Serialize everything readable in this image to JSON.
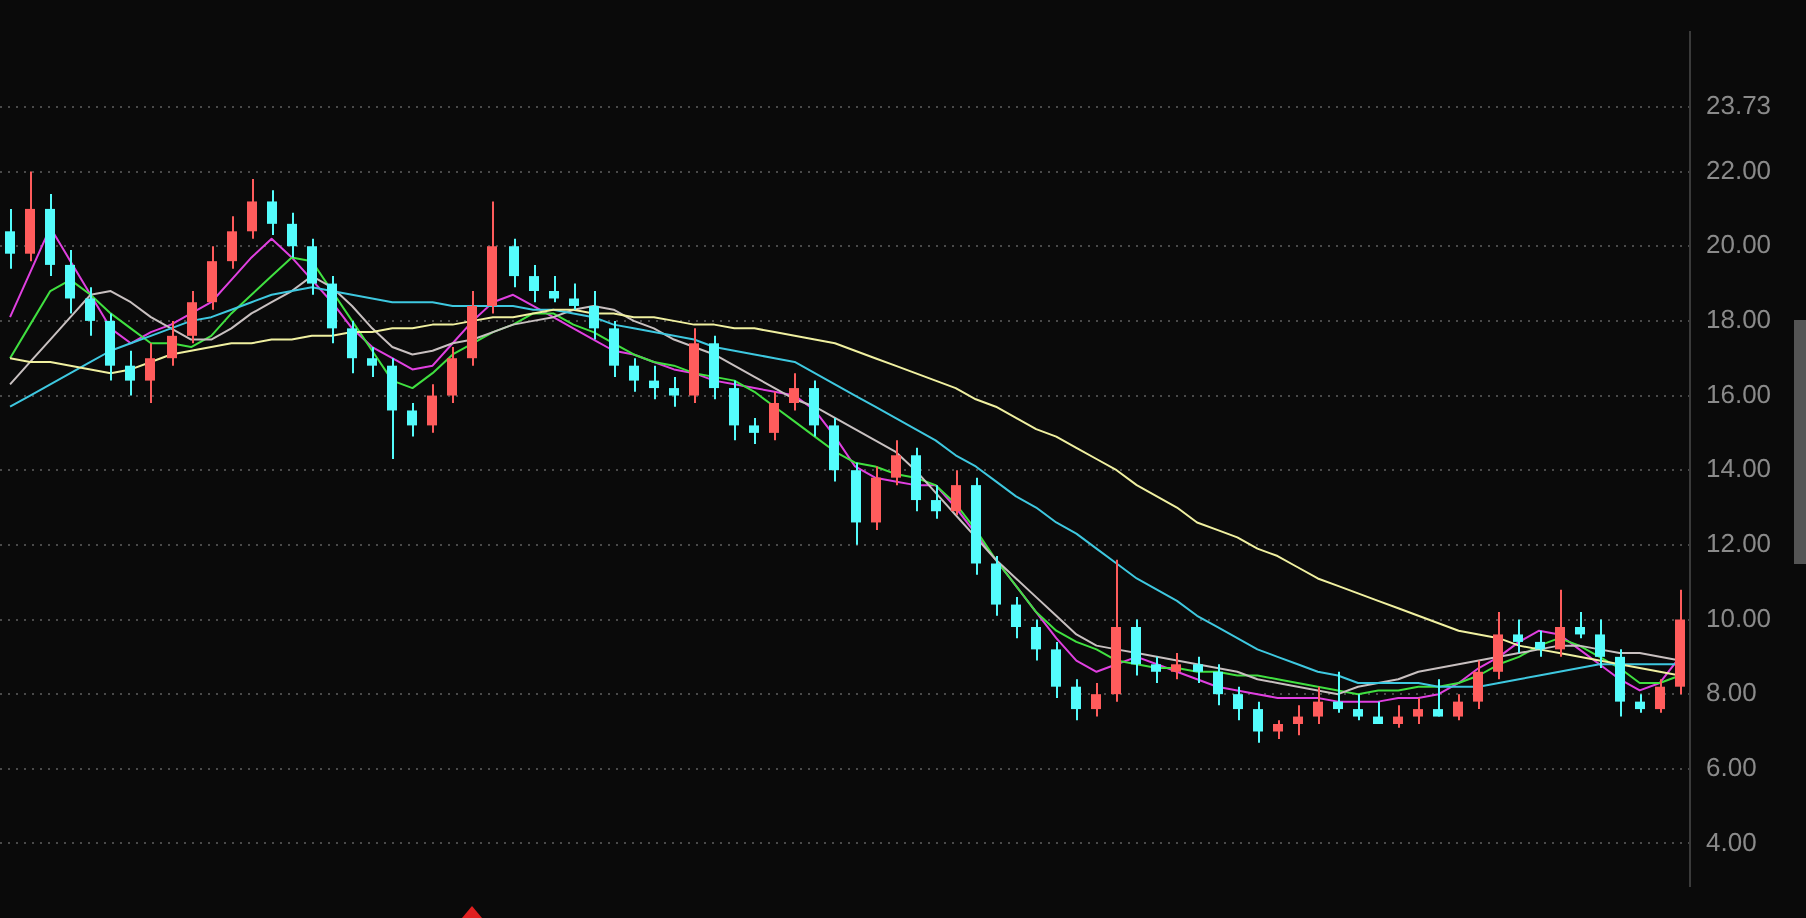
{
  "chart_data": {
    "type": "candlestick",
    "categories": [
      null,
      null,
      null,
      null,
      null,
      null,
      null,
      null,
      null,
      null,
      null,
      null,
      null,
      null,
      null,
      null,
      null,
      null,
      null,
      null,
      null,
      null,
      null,
      null,
      null,
      null,
      null,
      null,
      null,
      null,
      null,
      null,
      null,
      null,
      null,
      null,
      null,
      null,
      null,
      null,
      null,
      null,
      null,
      null,
      null,
      null,
      null,
      null,
      null,
      null,
      null,
      null,
      null,
      null,
      null,
      null,
      null,
      null,
      null,
      null,
      null,
      null,
      null,
      null,
      null,
      null,
      null,
      null,
      null,
      null,
      null,
      null,
      null,
      null,
      null,
      null,
      null,
      null,
      null,
      null,
      null,
      null,
      null,
      null
    ],
    "ohlc": [
      [
        20.4,
        21.0,
        19.4,
        19.8
      ],
      [
        19.8,
        22.0,
        19.6,
        21.0
      ],
      [
        21.0,
        21.4,
        19.2,
        19.5
      ],
      [
        19.5,
        19.9,
        18.2,
        18.6
      ],
      [
        18.6,
        18.9,
        17.6,
        18.0
      ],
      [
        18.0,
        18.2,
        16.4,
        16.8
      ],
      [
        16.8,
        17.2,
        16.0,
        16.4
      ],
      [
        16.4,
        17.4,
        15.8,
        17.0
      ],
      [
        17.0,
        18.0,
        16.8,
        17.6
      ],
      [
        17.6,
        18.8,
        17.4,
        18.5
      ],
      [
        18.5,
        20.0,
        18.3,
        19.6
      ],
      [
        19.6,
        20.8,
        19.4,
        20.4
      ],
      [
        20.4,
        21.8,
        20.2,
        21.2
      ],
      [
        21.2,
        21.5,
        20.3,
        20.6
      ],
      [
        20.6,
        20.9,
        19.7,
        20.0
      ],
      [
        20.0,
        20.2,
        18.7,
        19.0
      ],
      [
        19.0,
        19.2,
        17.4,
        17.8
      ],
      [
        17.8,
        18.0,
        16.6,
        17.0
      ],
      [
        17.0,
        17.3,
        16.5,
        16.8
      ],
      [
        16.8,
        17.0,
        14.3,
        15.6
      ],
      [
        15.6,
        15.8,
        14.9,
        15.2
      ],
      [
        15.2,
        16.3,
        15.0,
        16.0
      ],
      [
        16.0,
        17.3,
        15.8,
        17.0
      ],
      [
        17.0,
        18.8,
        16.8,
        18.4
      ],
      [
        18.4,
        21.2,
        18.2,
        20.0
      ],
      [
        20.0,
        20.2,
        18.9,
        19.2
      ],
      [
        19.2,
        19.5,
        18.5,
        18.8
      ],
      [
        18.8,
        19.2,
        18.5,
        18.6
      ],
      [
        18.6,
        19.0,
        18.3,
        18.4
      ],
      [
        18.4,
        18.8,
        17.5,
        17.8
      ],
      [
        17.8,
        18.0,
        16.5,
        16.8
      ],
      [
        16.8,
        17.0,
        16.1,
        16.4
      ],
      [
        16.4,
        16.8,
        15.9,
        16.2
      ],
      [
        16.2,
        16.5,
        15.7,
        16.0
      ],
      [
        16.0,
        17.8,
        15.8,
        17.4
      ],
      [
        17.4,
        17.6,
        15.9,
        16.2
      ],
      [
        16.2,
        16.4,
        14.8,
        15.2
      ],
      [
        15.2,
        15.4,
        14.7,
        15.0
      ],
      [
        15.0,
        16.1,
        14.8,
        15.8
      ],
      [
        15.8,
        16.6,
        15.6,
        16.2
      ],
      [
        16.2,
        16.4,
        14.9,
        15.2
      ],
      [
        15.2,
        15.4,
        13.7,
        14.0
      ],
      [
        14.0,
        14.2,
        12.0,
        12.6
      ],
      [
        12.6,
        14.1,
        12.4,
        13.8
      ],
      [
        13.8,
        14.8,
        13.6,
        14.4
      ],
      [
        14.4,
        14.6,
        12.9,
        13.2
      ],
      [
        13.2,
        13.6,
        12.7,
        12.9
      ],
      [
        12.9,
        14.0,
        12.8,
        13.6
      ],
      [
        13.6,
        13.8,
        11.2,
        11.5
      ],
      [
        11.5,
        11.7,
        10.1,
        10.4
      ],
      [
        10.4,
        10.6,
        9.5,
        9.8
      ],
      [
        9.8,
        10.0,
        8.9,
        9.2
      ],
      [
        9.2,
        9.4,
        7.9,
        8.2
      ],
      [
        8.2,
        8.4,
        7.3,
        7.6
      ],
      [
        7.6,
        8.3,
        7.4,
        8.0
      ],
      [
        8.0,
        11.6,
        7.8,
        9.8
      ],
      [
        9.8,
        10.0,
        8.5,
        8.8
      ],
      [
        8.8,
        9.0,
        8.3,
        8.6
      ],
      [
        8.6,
        9.1,
        8.4,
        8.8
      ],
      [
        8.8,
        9.0,
        8.3,
        8.6
      ],
      [
        8.6,
        8.8,
        7.7,
        8.0
      ],
      [
        8.0,
        8.2,
        7.3,
        7.6
      ],
      [
        7.6,
        7.8,
        6.7,
        7.0
      ],
      [
        7.0,
        7.3,
        6.8,
        7.2
      ],
      [
        7.2,
        7.7,
        6.9,
        7.4
      ],
      [
        7.4,
        8.2,
        7.2,
        7.8
      ],
      [
        7.8,
        8.6,
        7.5,
        7.6
      ],
      [
        7.6,
        8.0,
        7.3,
        7.4
      ],
      [
        7.4,
        7.8,
        7.2,
        7.2
      ],
      [
        7.2,
        7.7,
        7.1,
        7.4
      ],
      [
        7.4,
        7.9,
        7.2,
        7.6
      ],
      [
        7.6,
        8.4,
        7.4,
        7.4
      ],
      [
        7.4,
        8.0,
        7.3,
        7.8
      ],
      [
        7.8,
        8.9,
        7.6,
        8.6
      ],
      [
        8.6,
        10.2,
        8.4,
        9.6
      ],
      [
        9.6,
        10.0,
        9.1,
        9.4
      ],
      [
        9.4,
        9.7,
        9.0,
        9.2
      ],
      [
        9.2,
        10.8,
        9.0,
        9.8
      ],
      [
        9.8,
        10.2,
        9.5,
        9.6
      ],
      [
        9.6,
        10.0,
        8.7,
        9.0
      ],
      [
        9.0,
        9.2,
        7.4,
        7.8
      ],
      [
        7.8,
        8.0,
        7.5,
        7.6
      ],
      [
        7.6,
        8.4,
        7.5,
        8.2
      ],
      [
        8.2,
        10.8,
        8.0,
        10.0
      ]
    ],
    "colors": [
      "#54fcfc",
      "#ff5c5c",
      "#54fcfc",
      "#54fcfc",
      "#54fcfc",
      "#54fcfc",
      "#54fcfc",
      "#ff5c5c",
      "#ff5c5c",
      "#ff5c5c",
      "#ff5c5c",
      "#ff5c5c",
      "#ff5c5c",
      "#54fcfc",
      "#54fcfc",
      "#54fcfc",
      "#54fcfc",
      "#54fcfc",
      "#54fcfc",
      "#54fcfc",
      "#54fcfc",
      "#ff5c5c",
      "#ff5c5c",
      "#ff5c5c",
      "#ff5c5c",
      "#54fcfc",
      "#54fcfc",
      "#54fcfc",
      "#54fcfc",
      "#54fcfc",
      "#54fcfc",
      "#54fcfc",
      "#54fcfc",
      "#54fcfc",
      "#ff5c5c",
      "#54fcfc",
      "#54fcfc",
      "#54fcfc",
      "#ff5c5c",
      "#ff5c5c",
      "#54fcfc",
      "#54fcfc",
      "#54fcfc",
      "#ff5c5c",
      "#ff5c5c",
      "#54fcfc",
      "#54fcfc",
      "#ff5c5c",
      "#54fcfc",
      "#54fcfc",
      "#54fcfc",
      "#54fcfc",
      "#54fcfc",
      "#54fcfc",
      "#ff5c5c",
      "#ff5c5c",
      "#54fcfc",
      "#54fcfc",
      "#ff5c5c",
      "#54fcfc",
      "#54fcfc",
      "#54fcfc",
      "#54fcfc",
      "#ff5c5c",
      "#ff5c5c",
      "#ff5c5c",
      "#54fcfc",
      "#54fcfc",
      "#54fcfc",
      "#ff5c5c",
      "#ff5c5c",
      "#54fcfc",
      "#ff5c5c",
      "#ff5c5c",
      "#ff5c5c",
      "#54fcfc",
      "#54fcfc",
      "#ff5c5c",
      "#54fcfc",
      "#54fcfc",
      "#54fcfc",
      "#54fcfc",
      "#ff5c5c",
      "#ff5c5c"
    ],
    "series": [
      {
        "type": "line",
        "color": "#f0f0a0",
        "values": [
          17.0,
          16.9,
          16.9,
          16.8,
          16.7,
          16.6,
          16.7,
          16.9,
          17.1,
          17.2,
          17.3,
          17.4,
          17.4,
          17.5,
          17.5,
          17.6,
          17.6,
          17.7,
          17.7,
          17.8,
          17.8,
          17.9,
          17.9,
          18.0,
          18.1,
          18.1,
          18.2,
          18.3,
          18.3,
          18.2,
          18.2,
          18.1,
          18.1,
          18.0,
          17.9,
          17.9,
          17.8,
          17.8,
          17.7,
          17.6,
          17.5,
          17.4,
          17.2,
          17.0,
          16.8,
          16.6,
          16.4,
          16.2,
          15.9,
          15.7,
          15.4,
          15.1,
          14.9,
          14.6,
          14.3,
          14.0,
          13.6,
          13.3,
          13.0,
          12.6,
          12.4,
          12.2,
          11.9,
          11.7,
          11.4,
          11.1,
          10.9,
          10.7,
          10.5,
          10.3,
          10.1,
          9.9,
          9.7,
          9.6,
          9.5,
          9.3,
          9.2,
          9.1,
          9.0,
          8.9,
          8.8,
          8.7,
          8.6,
          8.5
        ]
      },
      {
        "type": "line",
        "color": "#3ec8e0",
        "values": [
          15.7,
          16.0,
          16.3,
          16.6,
          16.9,
          17.2,
          17.4,
          17.6,
          17.8,
          18.0,
          18.1,
          18.3,
          18.5,
          18.7,
          18.8,
          18.9,
          18.8,
          18.7,
          18.6,
          18.5,
          18.5,
          18.5,
          18.4,
          18.4,
          18.4,
          18.4,
          18.3,
          18.3,
          18.2,
          18.1,
          17.9,
          17.8,
          17.7,
          17.6,
          17.5,
          17.3,
          17.2,
          17.1,
          17.0,
          16.9,
          16.6,
          16.3,
          16.0,
          15.7,
          15.4,
          15.1,
          14.8,
          14.4,
          14.1,
          13.7,
          13.3,
          13.0,
          12.6,
          12.3,
          11.9,
          11.5,
          11.1,
          10.8,
          10.5,
          10.1,
          9.8,
          9.5,
          9.2,
          9.0,
          8.8,
          8.6,
          8.5,
          8.3,
          8.3,
          8.3,
          8.3,
          8.2,
          8.2,
          8.2,
          8.3,
          8.4,
          8.5,
          8.6,
          8.7,
          8.8,
          8.8,
          8.8,
          8.8,
          8.8
        ]
      },
      {
        "type": "line",
        "color": "#c8c0c0",
        "values": [
          16.3,
          16.9,
          17.5,
          18.1,
          18.7,
          18.8,
          18.5,
          18.1,
          17.8,
          17.5,
          17.5,
          17.8,
          18.2,
          18.5,
          18.8,
          19.2,
          18.9,
          18.4,
          17.8,
          17.3,
          17.1,
          17.2,
          17.4,
          17.5,
          17.7,
          17.9,
          18.0,
          18.1,
          18.3,
          18.4,
          18.3,
          18.0,
          17.8,
          17.5,
          17.3,
          17.1,
          16.8,
          16.5,
          16.2,
          15.9,
          15.7,
          15.4,
          15.1,
          14.8,
          14.5,
          14.0,
          13.4,
          12.8,
          12.2,
          11.6,
          11.1,
          10.6,
          10.1,
          9.6,
          9.3,
          9.2,
          9.1,
          9.0,
          8.9,
          8.8,
          8.7,
          8.6,
          8.4,
          8.3,
          8.2,
          8.1,
          8.0,
          8.2,
          8.3,
          8.4,
          8.6,
          8.7,
          8.8,
          8.9,
          9.0,
          9.1,
          9.2,
          9.3,
          9.3,
          9.2,
          9.1,
          9.1,
          9.0,
          8.9
        ]
      },
      {
        "type": "line",
        "color": "#40e040",
        "values": [
          17.0,
          17.9,
          18.8,
          19.1,
          18.7,
          18.2,
          17.8,
          17.4,
          17.4,
          17.3,
          17.6,
          18.2,
          18.7,
          19.2,
          19.7,
          19.6,
          18.8,
          18.0,
          17.2,
          16.4,
          16.2,
          16.6,
          17.1,
          17.4,
          17.7,
          17.9,
          18.2,
          18.2,
          17.9,
          17.7,
          17.4,
          17.1,
          16.9,
          16.8,
          16.6,
          16.5,
          16.4,
          16.1,
          15.7,
          15.3,
          14.9,
          14.5,
          14.2,
          14.1,
          13.9,
          13.8,
          13.6,
          13.1,
          12.4,
          11.6,
          10.9,
          10.2,
          9.7,
          9.4,
          9.2,
          8.9,
          8.8,
          8.7,
          8.7,
          8.6,
          8.6,
          8.5,
          8.5,
          8.4,
          8.3,
          8.2,
          8.1,
          8.0,
          8.1,
          8.1,
          8.2,
          8.2,
          8.3,
          8.5,
          8.8,
          9.0,
          9.3,
          9.5,
          9.3,
          9.0,
          8.7,
          8.3,
          8.3,
          8.5
        ]
      },
      {
        "type": "line",
        "color": "#e040e0",
        "values": [
          18.1,
          19.3,
          20.5,
          19.6,
          18.7,
          17.8,
          17.4,
          17.7,
          17.9,
          18.2,
          18.5,
          19.1,
          19.7,
          20.2,
          19.7,
          19.1,
          18.5,
          17.8,
          17.3,
          17.0,
          16.7,
          16.8,
          17.4,
          18.0,
          18.5,
          18.7,
          18.4,
          18.1,
          17.8,
          17.5,
          17.2,
          17.1,
          16.9,
          16.7,
          16.6,
          16.4,
          16.3,
          16.2,
          16.1,
          16.0,
          15.6,
          14.9,
          14.1,
          13.8,
          13.7,
          13.6,
          13.6,
          13.0,
          12.3,
          11.6,
          10.9,
          10.2,
          9.5,
          8.9,
          8.6,
          8.8,
          9.0,
          8.8,
          8.6,
          8.4,
          8.2,
          8.1,
          8.0,
          7.9,
          7.9,
          7.9,
          7.8,
          7.8,
          7.8,
          7.9,
          7.9,
          8.0,
          8.3,
          8.7,
          9.0,
          9.4,
          9.7,
          9.6,
          9.2,
          8.8,
          8.4,
          8.1,
          8.3,
          9.0
        ]
      }
    ],
    "ylim": [
      2.85,
      25.75
    ],
    "yticks": [
      {
        "value": 4,
        "label": "4.00"
      },
      {
        "value": 6,
        "label": "6.00"
      },
      {
        "value": 8,
        "label": "8.00"
      },
      {
        "value": 10,
        "label": "10.00"
      },
      {
        "value": 12,
        "label": "12.00"
      },
      {
        "value": 14,
        "label": "14.00"
      },
      {
        "value": 16,
        "label": "16.00"
      },
      {
        "value": 18,
        "label": "18.00"
      },
      {
        "value": 20,
        "label": "20.00"
      },
      {
        "value": 22,
        "label": "22.00"
      },
      {
        "value": 23.73,
        "label": "23.73"
      }
    ],
    "grid": "y",
    "tick_labels": "y"
  }
}
